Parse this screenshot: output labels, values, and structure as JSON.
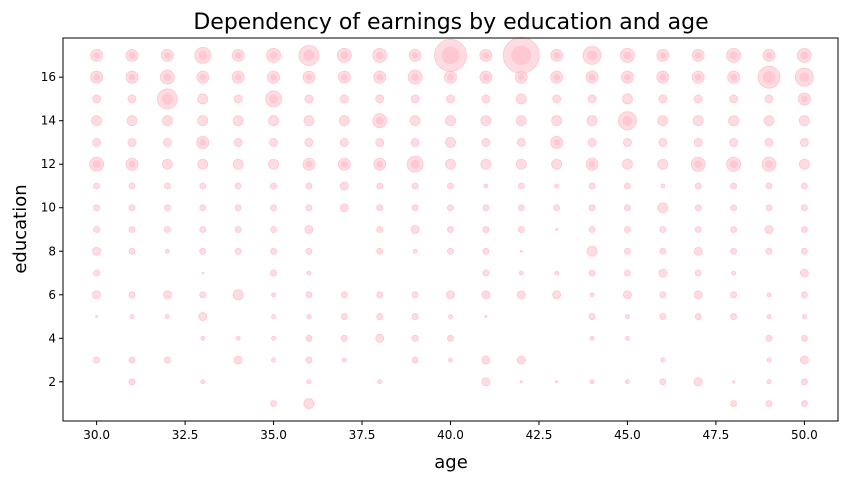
{
  "chart_data": {
    "type": "scatter",
    "title": "Dependency of earnings by education and age",
    "xlabel": "age",
    "ylabel": "education",
    "xlim": [
      29.05,
      50.95
    ],
    "ylim": [
      0.2,
      17.8
    ],
    "xticks": [
      30.0,
      32.5,
      35.0,
      37.5,
      40.0,
      42.5,
      45.0,
      47.5,
      50.0
    ],
    "xtick_labels": [
      "30.0",
      "32.5",
      "35.0",
      "37.5",
      "40.0",
      "42.5",
      "45.0",
      "47.5",
      "50.0"
    ],
    "yticks": [
      2,
      4,
      6,
      8,
      10,
      12,
      14,
      16
    ],
    "ytick_labels": [
      "2",
      "4",
      "6",
      "8",
      "10",
      "12",
      "14",
      "16"
    ],
    "grid": false,
    "point_color": "#ffc0cb",
    "size_meaning": "earnings",
    "ages": [
      30,
      31,
      32,
      33,
      34,
      35,
      36,
      37,
      38,
      39,
      40,
      41,
      42,
      43,
      44,
      45,
      46,
      47,
      48,
      49,
      50
    ],
    "education_levels": [
      1,
      2,
      3,
      4,
      5,
      6,
      7,
      8,
      9,
      10,
      11,
      12,
      13,
      14,
      15,
      16,
      17
    ],
    "size_grid": [
      [
        0,
        0,
        0,
        0,
        0,
        3,
        5,
        0,
        0,
        0,
        0,
        0,
        0,
        0,
        0,
        0,
        0,
        0,
        3,
        3,
        3
      ],
      [
        0,
        3,
        0,
        2,
        0,
        0,
        2,
        0,
        2,
        0,
        0,
        4,
        1,
        1,
        2,
        2,
        3,
        4,
        1,
        2,
        3
      ],
      [
        3,
        3,
        3,
        0,
        4,
        2,
        3,
        2,
        0,
        3,
        2,
        4,
        4,
        0,
        0,
        0,
        2,
        0,
        0,
        2,
        4
      ],
      [
        0,
        0,
        0,
        2,
        2,
        2,
        3,
        3,
        4,
        3,
        3,
        0,
        0,
        0,
        2,
        2,
        0,
        0,
        0,
        3,
        3
      ],
      [
        1,
        2,
        2,
        4,
        0,
        2,
        2,
        3,
        3,
        3,
        2,
        1,
        0,
        0,
        3,
        2,
        3,
        3,
        3,
        2,
        2
      ],
      [
        4,
        3,
        4,
        3,
        5,
        2,
        3,
        3,
        3,
        3,
        4,
        4,
        4,
        4,
        2,
        4,
        3,
        4,
        3,
        2,
        3
      ],
      [
        3,
        0,
        0,
        1,
        0,
        3,
        2,
        0,
        0,
        0,
        0,
        3,
        2,
        2,
        3,
        3,
        4,
        3,
        2,
        0,
        4
      ],
      [
        4,
        3,
        2,
        3,
        3,
        3,
        3,
        0,
        3,
        2,
        3,
        3,
        1,
        0,
        5,
        3,
        3,
        4,
        3,
        3,
        3
      ],
      [
        3,
        3,
        3,
        3,
        3,
        3,
        4,
        0,
        3,
        4,
        3,
        3,
        3,
        1,
        3,
        3,
        3,
        3,
        3,
        4,
        3
      ],
      [
        3,
        3,
        3,
        3,
        3,
        3,
        3,
        4,
        3,
        3,
        3,
        3,
        3,
        3,
        3,
        3,
        5,
        3,
        3,
        3,
        3
      ],
      [
        3,
        3,
        3,
        3,
        3,
        3,
        3,
        4,
        3,
        3,
        3,
        2,
        3,
        2,
        3,
        3,
        2,
        3,
        3,
        3,
        3
      ],
      [
        7,
        6,
        5,
        5,
        5,
        5,
        6,
        6,
        6,
        8,
        5,
        5,
        5,
        5,
        6,
        5,
        5,
        7,
        7,
        7,
        5
      ],
      [
        4,
        4,
        4,
        6,
        4,
        4,
        4,
        4,
        4,
        4,
        5,
        4,
        4,
        6,
        4,
        4,
        4,
        4,
        4,
        4,
        4
      ],
      [
        5,
        5,
        5,
        5,
        5,
        5,
        5,
        5,
        7,
        5,
        5,
        5,
        5,
        5,
        5,
        9,
        5,
        5,
        5,
        5,
        5
      ],
      [
        4,
        4,
        10,
        5,
        4,
        8,
        4,
        4,
        4,
        4,
        4,
        4,
        5,
        4,
        4,
        5,
        4,
        4,
        4,
        4,
        6
      ],
      [
        6,
        6,
        7,
        6,
        6,
        6,
        6,
        6,
        6,
        7,
        6,
        6,
        6,
        6,
        6,
        6,
        6,
        6,
        6,
        11,
        9
      ],
      [
        6,
        6,
        6,
        8,
        6,
        7,
        10,
        7,
        7,
        6,
        16,
        6,
        18,
        6,
        9,
        7,
        6,
        6,
        7,
        6,
        7
      ]
    ]
  }
}
